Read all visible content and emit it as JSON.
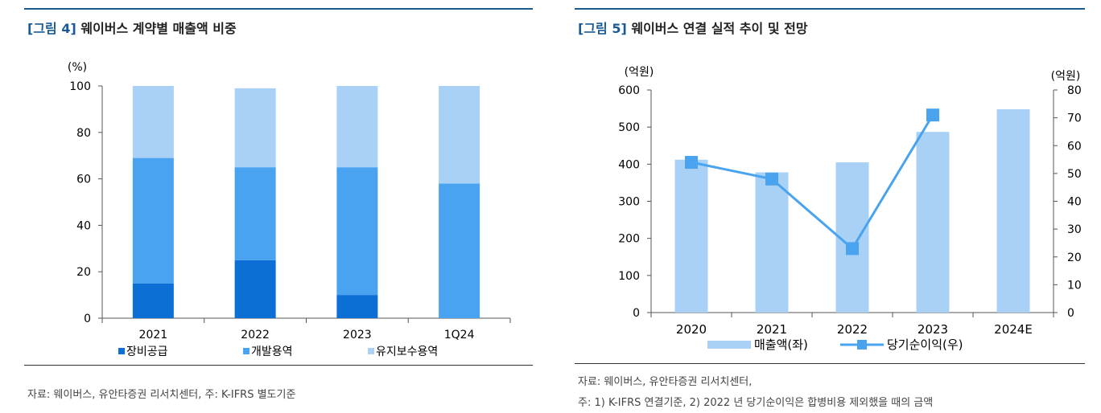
{
  "left": {
    "title_tag": "[그림 4]",
    "title_text": "웨이버스 계약별 매출액 비중",
    "source": "자료: 웨이버스, 유안타증권 리서치센터, 주: K-IFRS 별도기준"
  },
  "right": {
    "title_tag": "[그림 5]",
    "title_text": "웨이버스 연결 실적 추이 및 전망",
    "source_line1": "자료: 웨이버스, 유안타증권 리서치센터,",
    "source_line2": "주: 1) K-IFRS 연결기준, 2) 2022 년 당기순이익은 합병비용 제외했을 때의 금액"
  },
  "chart_data": [
    {
      "type": "bar",
      "stacked": true,
      "title": "웨이버스 계약별 매출액 비중",
      "ylabel": "(%)",
      "ylim": [
        0,
        100
      ],
      "yticks": [
        0,
        20,
        40,
        60,
        80,
        100
      ],
      "categories": [
        "2021",
        "2022",
        "2023",
        "1Q24"
      ],
      "series": [
        {
          "name": "장비공급",
          "color": "#0b6fd6",
          "values": [
            15,
            25,
            10,
            0
          ]
        },
        {
          "name": "개발용역",
          "color": "#49a3f0",
          "values": [
            54,
            40,
            55,
            58
          ]
        },
        {
          "name": "유지보수용역",
          "color": "#a9d1f5",
          "values": [
            31,
            34,
            35,
            42
          ]
        }
      ],
      "legend_position": "bottom"
    },
    {
      "type": "bar+line",
      "title": "웨이버스 연결 실적 추이 및 전망",
      "categories": [
        "2020",
        "2021",
        "2022",
        "2023",
        "2024E"
      ],
      "left_axis": {
        "label": "(억원)",
        "ylim": [
          0,
          600
        ],
        "ticks": [
          0,
          100,
          200,
          300,
          400,
          500,
          600
        ]
      },
      "right_axis": {
        "label": "(억원)",
        "ylim": [
          0,
          80
        ],
        "ticks": [
          0,
          10,
          20,
          30,
          40,
          50,
          60,
          70,
          80
        ]
      },
      "series": [
        {
          "name": "매출액(좌)",
          "type": "bar",
          "axis": "left",
          "color": "#a9d1f5",
          "values": [
            412,
            378,
            405,
            487,
            548
          ]
        },
        {
          "name": "당기순이익(우)",
          "type": "line",
          "axis": "right",
          "color": "#4aa3ef",
          "values": [
            54,
            48,
            23,
            71,
            null
          ]
        }
      ],
      "legend_position": "bottom"
    }
  ]
}
